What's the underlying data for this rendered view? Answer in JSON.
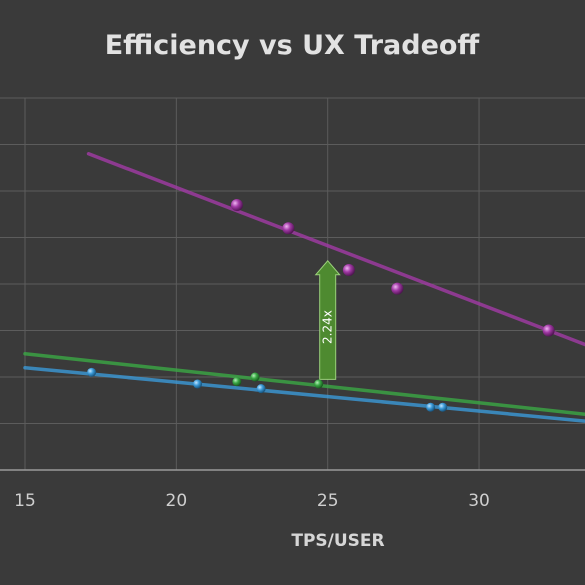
{
  "chart_data": {
    "type": "scatter",
    "title": "Efficiency vs UX Tradeoff",
    "xlabel": "TPS/USER",
    "ylabel": "",
    "xlim": [
      15,
      33.5
    ],
    "ylim": [
      0,
      8
    ],
    "xticks": [
      15,
      20,
      25,
      30
    ],
    "grid": true,
    "series": [
      {
        "color": "#a23aa6",
        "points": [
          [
            22.0,
            5.7
          ],
          [
            23.7,
            5.2
          ],
          [
            25.7,
            4.3
          ],
          [
            27.3,
            3.9
          ],
          [
            32.3,
            3.0
          ]
        ],
        "trend": [
          [
            17.1,
            6.8
          ],
          [
            33.5,
            2.7
          ]
        ]
      },
      {
        "color": "#3aa845",
        "points": [
          [
            22.0,
            1.9
          ],
          [
            22.6,
            2.0
          ],
          [
            24.7,
            1.85
          ]
        ],
        "trend": [
          [
            15,
            2.5
          ],
          [
            33.5,
            1.2
          ]
        ]
      },
      {
        "color": "#3b9ad8",
        "points": [
          [
            17.2,
            2.1
          ],
          [
            20.7,
            1.85
          ],
          [
            22.8,
            1.75
          ],
          [
            28.4,
            1.35
          ],
          [
            28.8,
            1.35
          ]
        ],
        "trend": [
          [
            15,
            2.2
          ],
          [
            33.5,
            1.05
          ]
        ]
      }
    ],
    "annotation": {
      "label": "2.24x",
      "x": 25,
      "from_y": 1.95,
      "to_y": 4.5,
      "color": "#4e8a30"
    }
  }
}
